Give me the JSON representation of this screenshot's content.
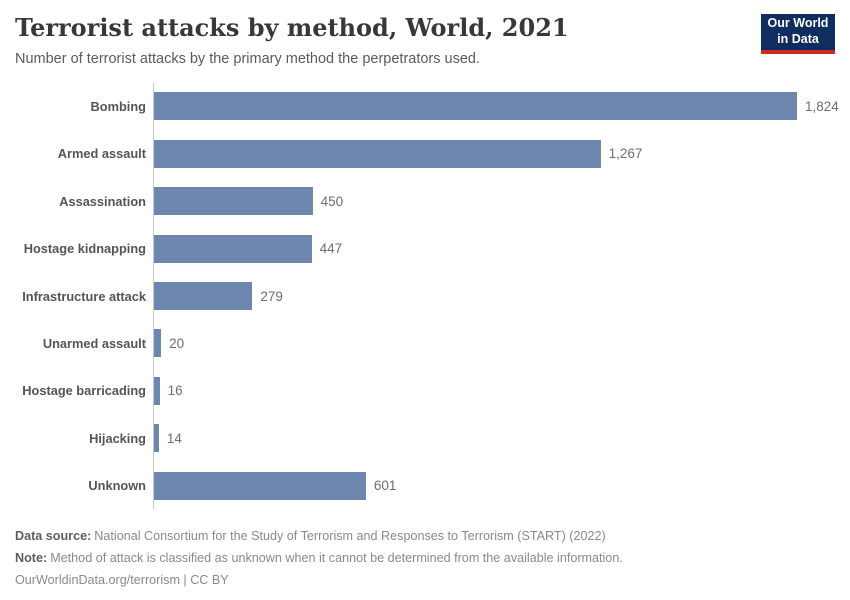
{
  "header": {
    "title": "Terrorist attacks by method, World, 2021",
    "subtitle": "Number of terrorist attacks by the primary method the perpetrators used.",
    "logo": {
      "line1": "Our World",
      "line2": "in Data"
    }
  },
  "chart_data": {
    "type": "bar",
    "orientation": "horizontal",
    "title": "Terrorist attacks by method, World, 2021",
    "subtitle": "Number of terrorist attacks by the primary method the perpetrators used.",
    "categories": [
      "Bombing",
      "Armed assault",
      "Assassination",
      "Hostage kidnapping",
      "Infrastructure attack",
      "Unarmed assault",
      "Hostage barricading",
      "Hijacking",
      "Unknown"
    ],
    "values": [
      1824,
      1267,
      450,
      447,
      279,
      20,
      16,
      14,
      601
    ],
    "value_labels": [
      "1,824",
      "1,267",
      "450",
      "447",
      "279",
      "20",
      "16",
      "14",
      "601"
    ],
    "xlabel": "",
    "ylabel": "",
    "xlim": [
      0,
      1824
    ],
    "grid": false,
    "legend": "none",
    "bar_color": "#6d87ae"
  },
  "footer": {
    "data_source_label": "Data source:",
    "data_source_text": "National Consortium for the Study of Terrorism and Responses to Terrorism (START) (2022)",
    "note_label": "Note:",
    "note_text": "Method of attack is classified as unknown when it cannot be determined from the available information.",
    "credit": "OurWorldinData.org/terrorism | CC BY"
  },
  "colors": {
    "bar": "#6d87ae",
    "axis_line": "#c9c9c9",
    "title_text": "#383838",
    "logo_navy": "#102d5f",
    "logo_red": "#cc2a20"
  }
}
